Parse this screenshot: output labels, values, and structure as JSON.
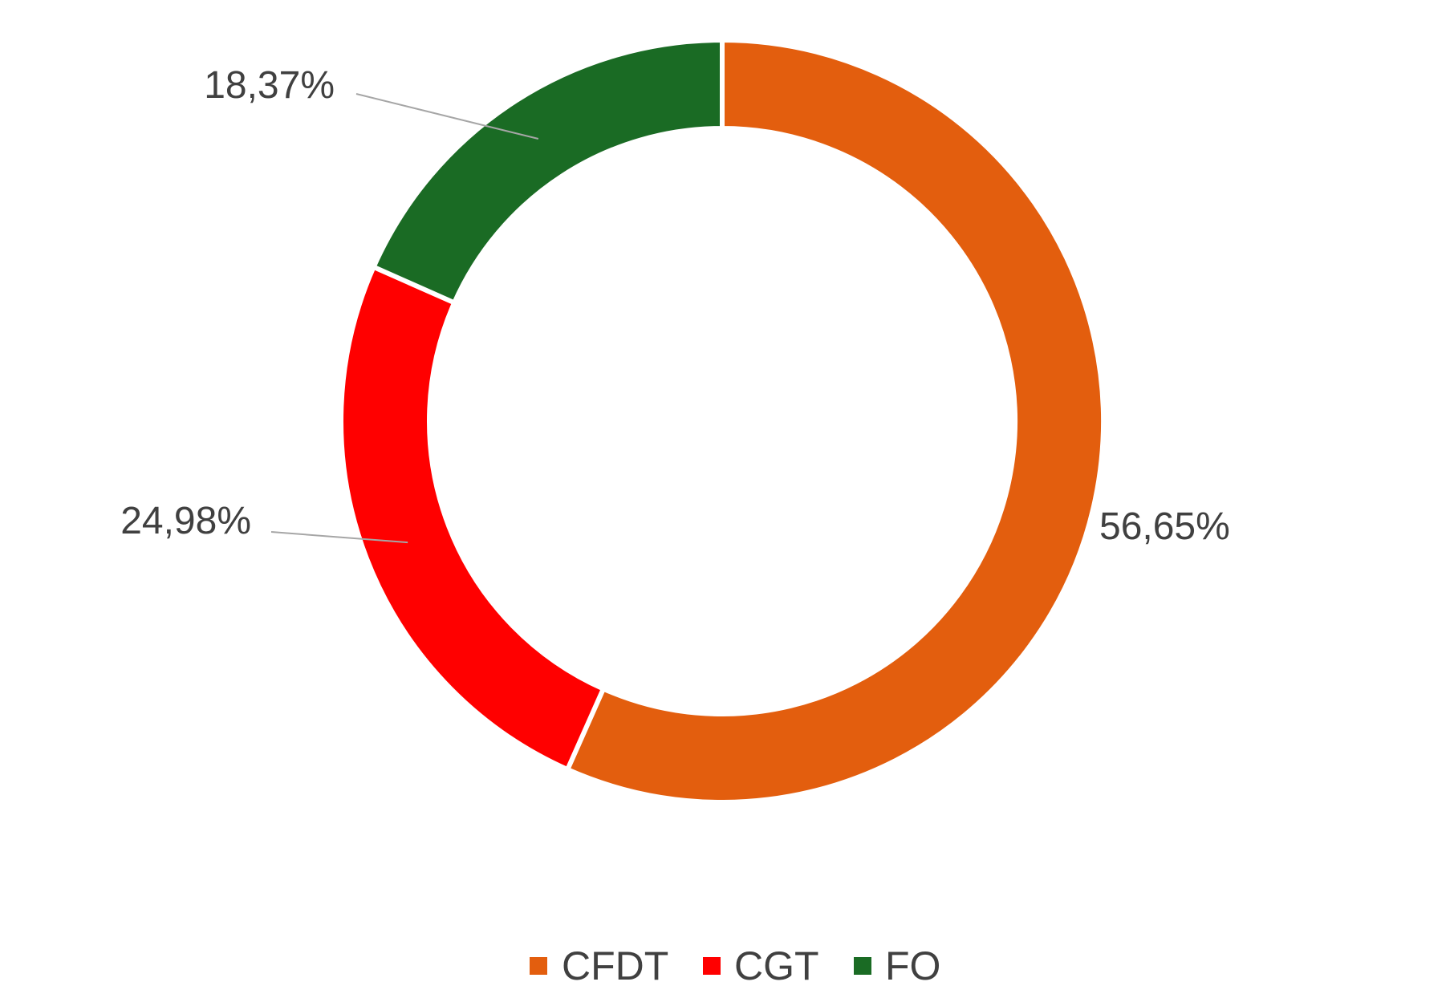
{
  "chart_data": {
    "type": "pie",
    "subtype": "doughnut",
    "categories": [
      "CFDT",
      "CGT",
      "FO"
    ],
    "values": [
      56.65,
      24.98,
      18.37
    ],
    "value_labels": [
      "56,65%",
      "24,98%",
      "18,37%"
    ],
    "colors": [
      "#e35e0e",
      "#ff0000",
      "#1a6b24"
    ],
    "legend_position": "bottom",
    "title": ""
  }
}
